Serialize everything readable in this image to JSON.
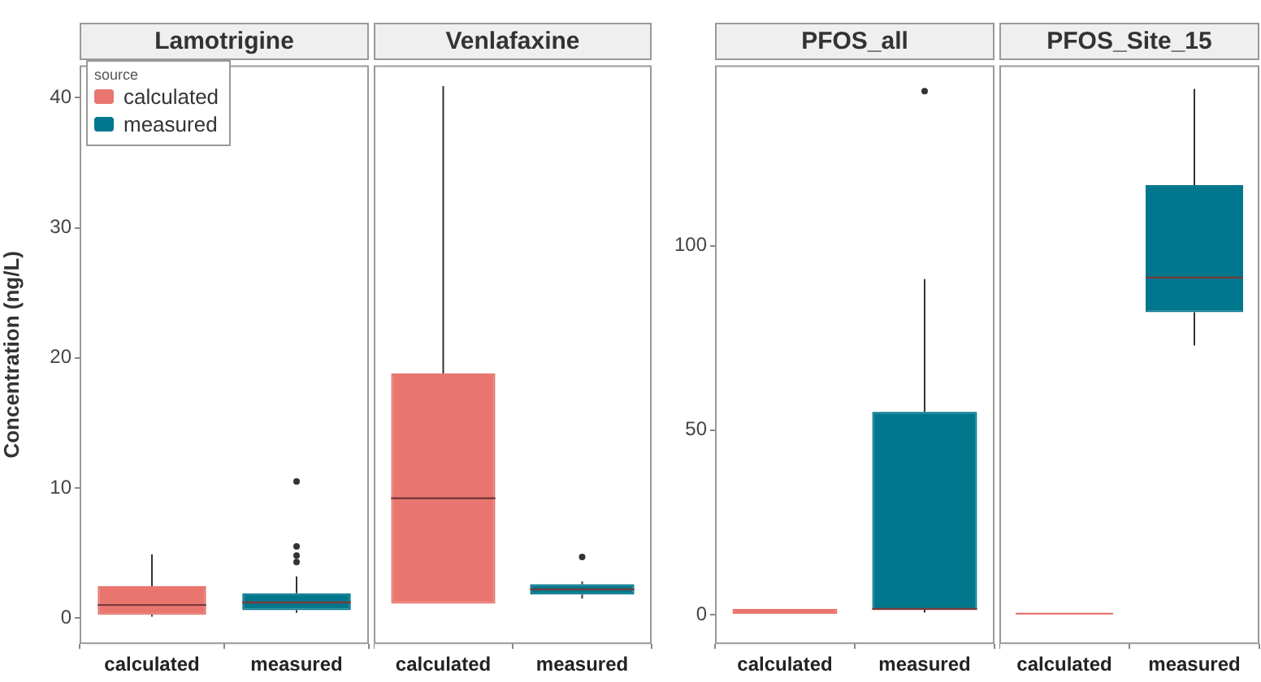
{
  "chart_data": [
    {
      "type": "box",
      "title": "Lamotrigine",
      "ylabel": "Concentration (ng/L)",
      "legend_title": "source",
      "legend": "top left",
      "grid": false,
      "categories": [
        "calculated",
        "measured"
      ],
      "ylim": [
        -2,
        42.5
      ],
      "yticks": [
        0,
        10,
        20,
        30,
        40
      ],
      "series": [
        {
          "name": "calculated",
          "color": "#e8766f",
          "boxes": [
            {
              "low": 0.1,
              "q1": 0.25,
              "median": 1.0,
              "q3": 2.45,
              "high": 4.9
            },
            null
          ]
        },
        {
          "name": "measured",
          "color": "#00778d",
          "boxes": [
            null,
            {
              "low": 0.4,
              "q1": 0.6,
              "median": 1.2,
              "q3": 1.9,
              "high": 3.2,
              "outliers": [
                4.3,
                4.8,
                5.5,
                10.5
              ]
            }
          ]
        }
      ]
    },
    {
      "type": "box",
      "title": "Venlafaxine",
      "grid": false,
      "tick_labels": "x",
      "categories": [
        "calculated",
        "measured"
      ],
      "ylim": [
        -2,
        42.5
      ],
      "series": [
        {
          "color": "#e8766f",
          "boxes": [
            {
              "low": 1.1,
              "q1": 1.1,
              "median": 9.2,
              "q3": 18.8,
              "high": 40.9
            },
            null
          ]
        },
        {
          "color": "#00778d",
          "boxes": [
            null,
            {
              "low": 1.5,
              "q1": 1.8,
              "median": 2.2,
              "q3": 2.6,
              "high": 2.8,
              "outliers": [
                4.7
              ]
            }
          ]
        }
      ]
    },
    {
      "type": "box",
      "title": "PFOS_all",
      "grid": false,
      "categories": [
        "calculated",
        "measured"
      ],
      "ylim": [
        -8,
        149
      ],
      "yticks": [
        0,
        50,
        100
      ],
      "series": [
        {
          "color": "#e8766f",
          "boxes": [
            {
              "low": 0,
              "q1": 0,
              "median": 0.5,
              "q3": 1.5,
              "high": 1.5
            },
            null
          ]
        },
        {
          "color": "#00778d",
          "boxes": [
            null,
            {
              "low": 0.5,
              "q1": 1.3,
              "median": 1.5,
              "q3": 55,
              "high": 91,
              "outliers": [
                142
              ]
            }
          ]
        }
      ]
    },
    {
      "type": "box",
      "title": "PFOS_Site_15",
      "grid": false,
      "tick_labels": "x",
      "categories": [
        "calculated",
        "measured"
      ],
      "ylim": [
        -8,
        149
      ],
      "series": [
        {
          "color": "#e8766f",
          "boxes": [
            {
              "low": 0,
              "q1": 0,
              "median": 0,
              "q3": 0.5,
              "high": 0.5
            },
            null
          ]
        },
        {
          "color": "#00778d",
          "boxes": [
            null,
            {
              "low": 73,
              "q1": 82,
              "median": 91.4,
              "q3": 116.5,
              "high": 142.6
            }
          ]
        }
      ]
    }
  ]
}
